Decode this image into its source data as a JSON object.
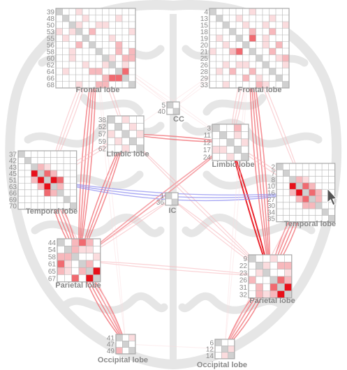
{
  "colors": {
    "strong": "#e8101a",
    "medium": "#f06a70",
    "light": "#f7b8bc",
    "faint": "#fbdcde",
    "self": "#d0d0d0",
    "grid": "#b5b5b5",
    "inter_hemisphere": "#8f8ff0",
    "brain_background": "#e6e6e6"
  },
  "cursor": {
    "icon": "mouse-pointer-icon"
  },
  "regions": [
    {
      "id": "frontal-left",
      "label": "Frontal lobe",
      "rows": [
        "39",
        "48",
        "50",
        "53",
        "55",
        "56",
        "58",
        "60",
        "62",
        "64",
        "66",
        "68"
      ],
      "cells": [
        [
          0,
          3,
          "faint"
        ],
        [
          1,
          4,
          "faint"
        ],
        [
          2,
          3,
          "faint"
        ],
        [
          2,
          7,
          "faint"
        ],
        [
          3,
          5,
          "light"
        ],
        [
          4,
          1,
          "faint"
        ],
        [
          5,
          9,
          "light"
        ],
        [
          6,
          2,
          "faint"
        ],
        [
          7,
          8,
          "faint"
        ],
        [
          8,
          4,
          "faint"
        ],
        [
          9,
          6,
          "light"
        ],
        [
          10,
          8,
          "medium"
        ],
        [
          10,
          9,
          "medium"
        ],
        [
          11,
          7,
          "light"
        ],
        [
          7,
          10,
          "light"
        ],
        [
          8,
          10,
          "faint"
        ],
        [
          3,
          11,
          "faint"
        ],
        [
          1,
          9,
          "faint"
        ],
        [
          6,
          11,
          "light"
        ]
      ]
    },
    {
      "id": "frontal-right",
      "label": "Frontal lobe",
      "rows": [
        "4",
        "13",
        "15",
        "18",
        "19",
        "20",
        "21",
        "25",
        "26",
        "28",
        "29",
        "33"
      ],
      "cells": [
        [
          0,
          6,
          "faint"
        ],
        [
          1,
          4,
          "faint"
        ],
        [
          2,
          8,
          "faint"
        ],
        [
          3,
          9,
          "light"
        ],
        [
          4,
          6,
          "medium"
        ],
        [
          5,
          2,
          "faint"
        ],
        [
          5,
          8,
          "faint"
        ],
        [
          6,
          3,
          "light"
        ],
        [
          7,
          10,
          "faint"
        ],
        [
          8,
          4,
          "faint"
        ],
        [
          9,
          6,
          "light"
        ],
        [
          10,
          5,
          "light"
        ],
        [
          11,
          7,
          "light"
        ],
        [
          8,
          11,
          "faint"
        ],
        [
          2,
          11,
          "faint"
        ],
        [
          9,
          1,
          "faint"
        ]
      ]
    },
    {
      "id": "cc",
      "label": "CC",
      "rows": [
        "5",
        "40"
      ],
      "cells": []
    },
    {
      "id": "limbic-left",
      "label": "Limbic lobe",
      "rows": [
        "38",
        "52",
        "57",
        "59",
        "62"
      ],
      "cells": [
        [
          0,
          2,
          "faint"
        ],
        [
          2,
          4,
          "faint"
        ],
        [
          3,
          1,
          "faint"
        ]
      ]
    },
    {
      "id": "limbic-right",
      "label": "Limbic lobe",
      "rows": [
        "3",
        "11",
        "12",
        "17",
        "24"
      ],
      "cells": [
        [
          0,
          3,
          "light"
        ],
        [
          1,
          3,
          "faint"
        ],
        [
          2,
          4,
          "faint"
        ],
        [
          3,
          0,
          "faint"
        ]
      ]
    },
    {
      "id": "temporal-left",
      "label": "Temporal lobe",
      "rows": [
        "37",
        "42",
        "43",
        "45",
        "51",
        "63",
        "66",
        "69",
        "70"
      ],
      "cells": [
        [
          2,
          3,
          "light"
        ],
        [
          2,
          4,
          "faint"
        ],
        [
          3,
          2,
          "strong"
        ],
        [
          3,
          4,
          "medium"
        ],
        [
          3,
          5,
          "light"
        ],
        [
          4,
          3,
          "strong"
        ],
        [
          4,
          5,
          "strong"
        ],
        [
          5,
          3,
          "light"
        ],
        [
          5,
          4,
          "strong"
        ],
        [
          5,
          6,
          "light"
        ],
        [
          6,
          4,
          "medium"
        ],
        [
          6,
          5,
          "light"
        ],
        [
          2,
          2,
          "faint"
        ],
        [
          4,
          2,
          "light"
        ]
      ]
    },
    {
      "id": "ic",
      "label": "IC",
      "rows": [
        "1",
        "36"
      ],
      "cells": []
    },
    {
      "id": "temporal-right",
      "label": "Temporal lobe",
      "rows": [
        "2",
        "7",
        "8",
        "10",
        "16",
        "27",
        "30",
        "34",
        "35"
      ],
      "cells": [
        [
          2,
          3,
          "light"
        ],
        [
          2,
          4,
          "faint"
        ],
        [
          3,
          2,
          "strong"
        ],
        [
          3,
          4,
          "medium"
        ],
        [
          3,
          5,
          "light"
        ],
        [
          4,
          3,
          "strong"
        ],
        [
          4,
          5,
          "medium"
        ],
        [
          5,
          3,
          "light"
        ],
        [
          5,
          4,
          "medium"
        ],
        [
          5,
          6,
          "light"
        ],
        [
          6,
          4,
          "light"
        ],
        [
          4,
          2,
          "light"
        ]
      ]
    },
    {
      "id": "parietal-left",
      "label": "Parietal lobe",
      "rows": [
        "44",
        "54",
        "58",
        "61",
        "65",
        "67"
      ],
      "cells": [
        [
          0,
          2,
          "light"
        ],
        [
          1,
          4,
          "faint"
        ],
        [
          2,
          1,
          "light"
        ],
        [
          2,
          5,
          "faint"
        ],
        [
          3,
          0,
          "medium"
        ],
        [
          3,
          4,
          "light"
        ],
        [
          4,
          3,
          "light"
        ],
        [
          4,
          5,
          "strong"
        ],
        [
          5,
          2,
          "medium"
        ],
        [
          5,
          4,
          "strong"
        ],
        [
          4,
          0,
          "light"
        ],
        [
          1,
          3,
          "faint"
        ]
      ]
    },
    {
      "id": "parietal-right",
      "label": "Parietal lobe",
      "rows": [
        "9",
        "22",
        "23",
        "26",
        "31",
        "32"
      ],
      "cells": [
        [
          0,
          3,
          "faint"
        ],
        [
          1,
          4,
          "light"
        ],
        [
          2,
          1,
          "faint"
        ],
        [
          3,
          0,
          "light"
        ],
        [
          3,
          5,
          "light"
        ],
        [
          4,
          3,
          "medium"
        ],
        [
          4,
          5,
          "strong"
        ],
        [
          5,
          1,
          "light"
        ],
        [
          5,
          4,
          "strong"
        ],
        [
          2,
          5,
          "faint"
        ]
      ]
    },
    {
      "id": "occipital-left",
      "label": "Occipital lobe",
      "rows": [
        "41",
        "47",
        "49"
      ],
      "cells": [
        [
          0,
          2,
          "faint"
        ],
        [
          2,
          0,
          "light"
        ]
      ]
    },
    {
      "id": "occipital-right",
      "label": "Occipital lobe",
      "rows": [
        "6",
        "12",
        "14"
      ],
      "cells": [
        [
          1,
          2,
          "faint"
        ]
      ]
    }
  ],
  "connections": [
    {
      "from": "frontal-left",
      "to": "parietal-left",
      "strength": "medium",
      "count": 4
    },
    {
      "from": "frontal-left",
      "to": "temporal-left",
      "strength": "light",
      "count": 3
    },
    {
      "from": "frontal-left",
      "to": "limbic-left",
      "strength": "light",
      "count": 2
    },
    {
      "from": "frontal-left",
      "to": "cc",
      "strength": "faint",
      "count": 2
    },
    {
      "from": "frontal-left",
      "to": "limbic-right",
      "strength": "faint",
      "count": 2
    },
    {
      "from": "frontal-right",
      "to": "parietal-right",
      "strength": "medium",
      "count": 4
    },
    {
      "from": "frontal-right",
      "to": "limbic-right",
      "strength": "light",
      "count": 3
    },
    {
      "from": "frontal-right",
      "to": "temporal-right",
      "strength": "light",
      "count": 2
    },
    {
      "from": "frontal-right",
      "to": "cc",
      "strength": "faint",
      "count": 2
    },
    {
      "from": "frontal-right",
      "to": "limbic-left",
      "strength": "faint",
      "count": 1
    },
    {
      "from": "limbic-left",
      "to": "parietal-left",
      "strength": "medium",
      "count": 3
    },
    {
      "from": "limbic-left",
      "to": "limbic-right",
      "strength": "medium",
      "count": 2
    },
    {
      "from": "limbic-left",
      "to": "temporal-left",
      "strength": "light",
      "count": 2
    },
    {
      "from": "limbic-right",
      "to": "parietal-right",
      "strength": "strong",
      "count": 2
    },
    {
      "from": "limbic-right",
      "to": "temporal-right",
      "strength": "light",
      "count": 2
    },
    {
      "from": "limbic-right",
      "to": "parietal-left",
      "strength": "medium",
      "count": 2
    },
    {
      "from": "limbic-left",
      "to": "parietal-right",
      "strength": "light",
      "count": 2
    },
    {
      "from": "temporal-left",
      "to": "parietal-left",
      "strength": "medium",
      "count": 4
    },
    {
      "from": "temporal-right",
      "to": "parietal-right",
      "strength": "medium",
      "count": 4
    },
    {
      "from": "temporal-left",
      "to": "temporal-right",
      "strength": "inter",
      "count": 3
    },
    {
      "from": "parietal-left",
      "to": "occipital-left",
      "strength": "medium",
      "count": 4
    },
    {
      "from": "parietal-right",
      "to": "occipital-right",
      "strength": "medium",
      "count": 4
    },
    {
      "from": "parietal-left",
      "to": "ic",
      "strength": "light",
      "count": 2
    },
    {
      "from": "parietal-right",
      "to": "ic",
      "strength": "light",
      "count": 2
    },
    {
      "from": "parietal-left",
      "to": "parietal-right",
      "strength": "light",
      "count": 2
    },
    {
      "from": "parietal-left",
      "to": "limbic-right",
      "strength": "light",
      "count": 2
    },
    {
      "from": "temporal-left",
      "to": "occipital-left",
      "strength": "light",
      "count": 2
    },
    {
      "from": "temporal-right",
      "to": "occipital-right",
      "strength": "light",
      "count": 2
    },
    {
      "from": "frontal-left",
      "to": "occipital-left",
      "strength": "faint",
      "count": 2
    },
    {
      "from": "frontal-right",
      "to": "occipital-right",
      "strength": "faint",
      "count": 2
    },
    {
      "from": "occipital-left",
      "to": "occipital-right",
      "strength": "faint",
      "count": 1
    }
  ]
}
